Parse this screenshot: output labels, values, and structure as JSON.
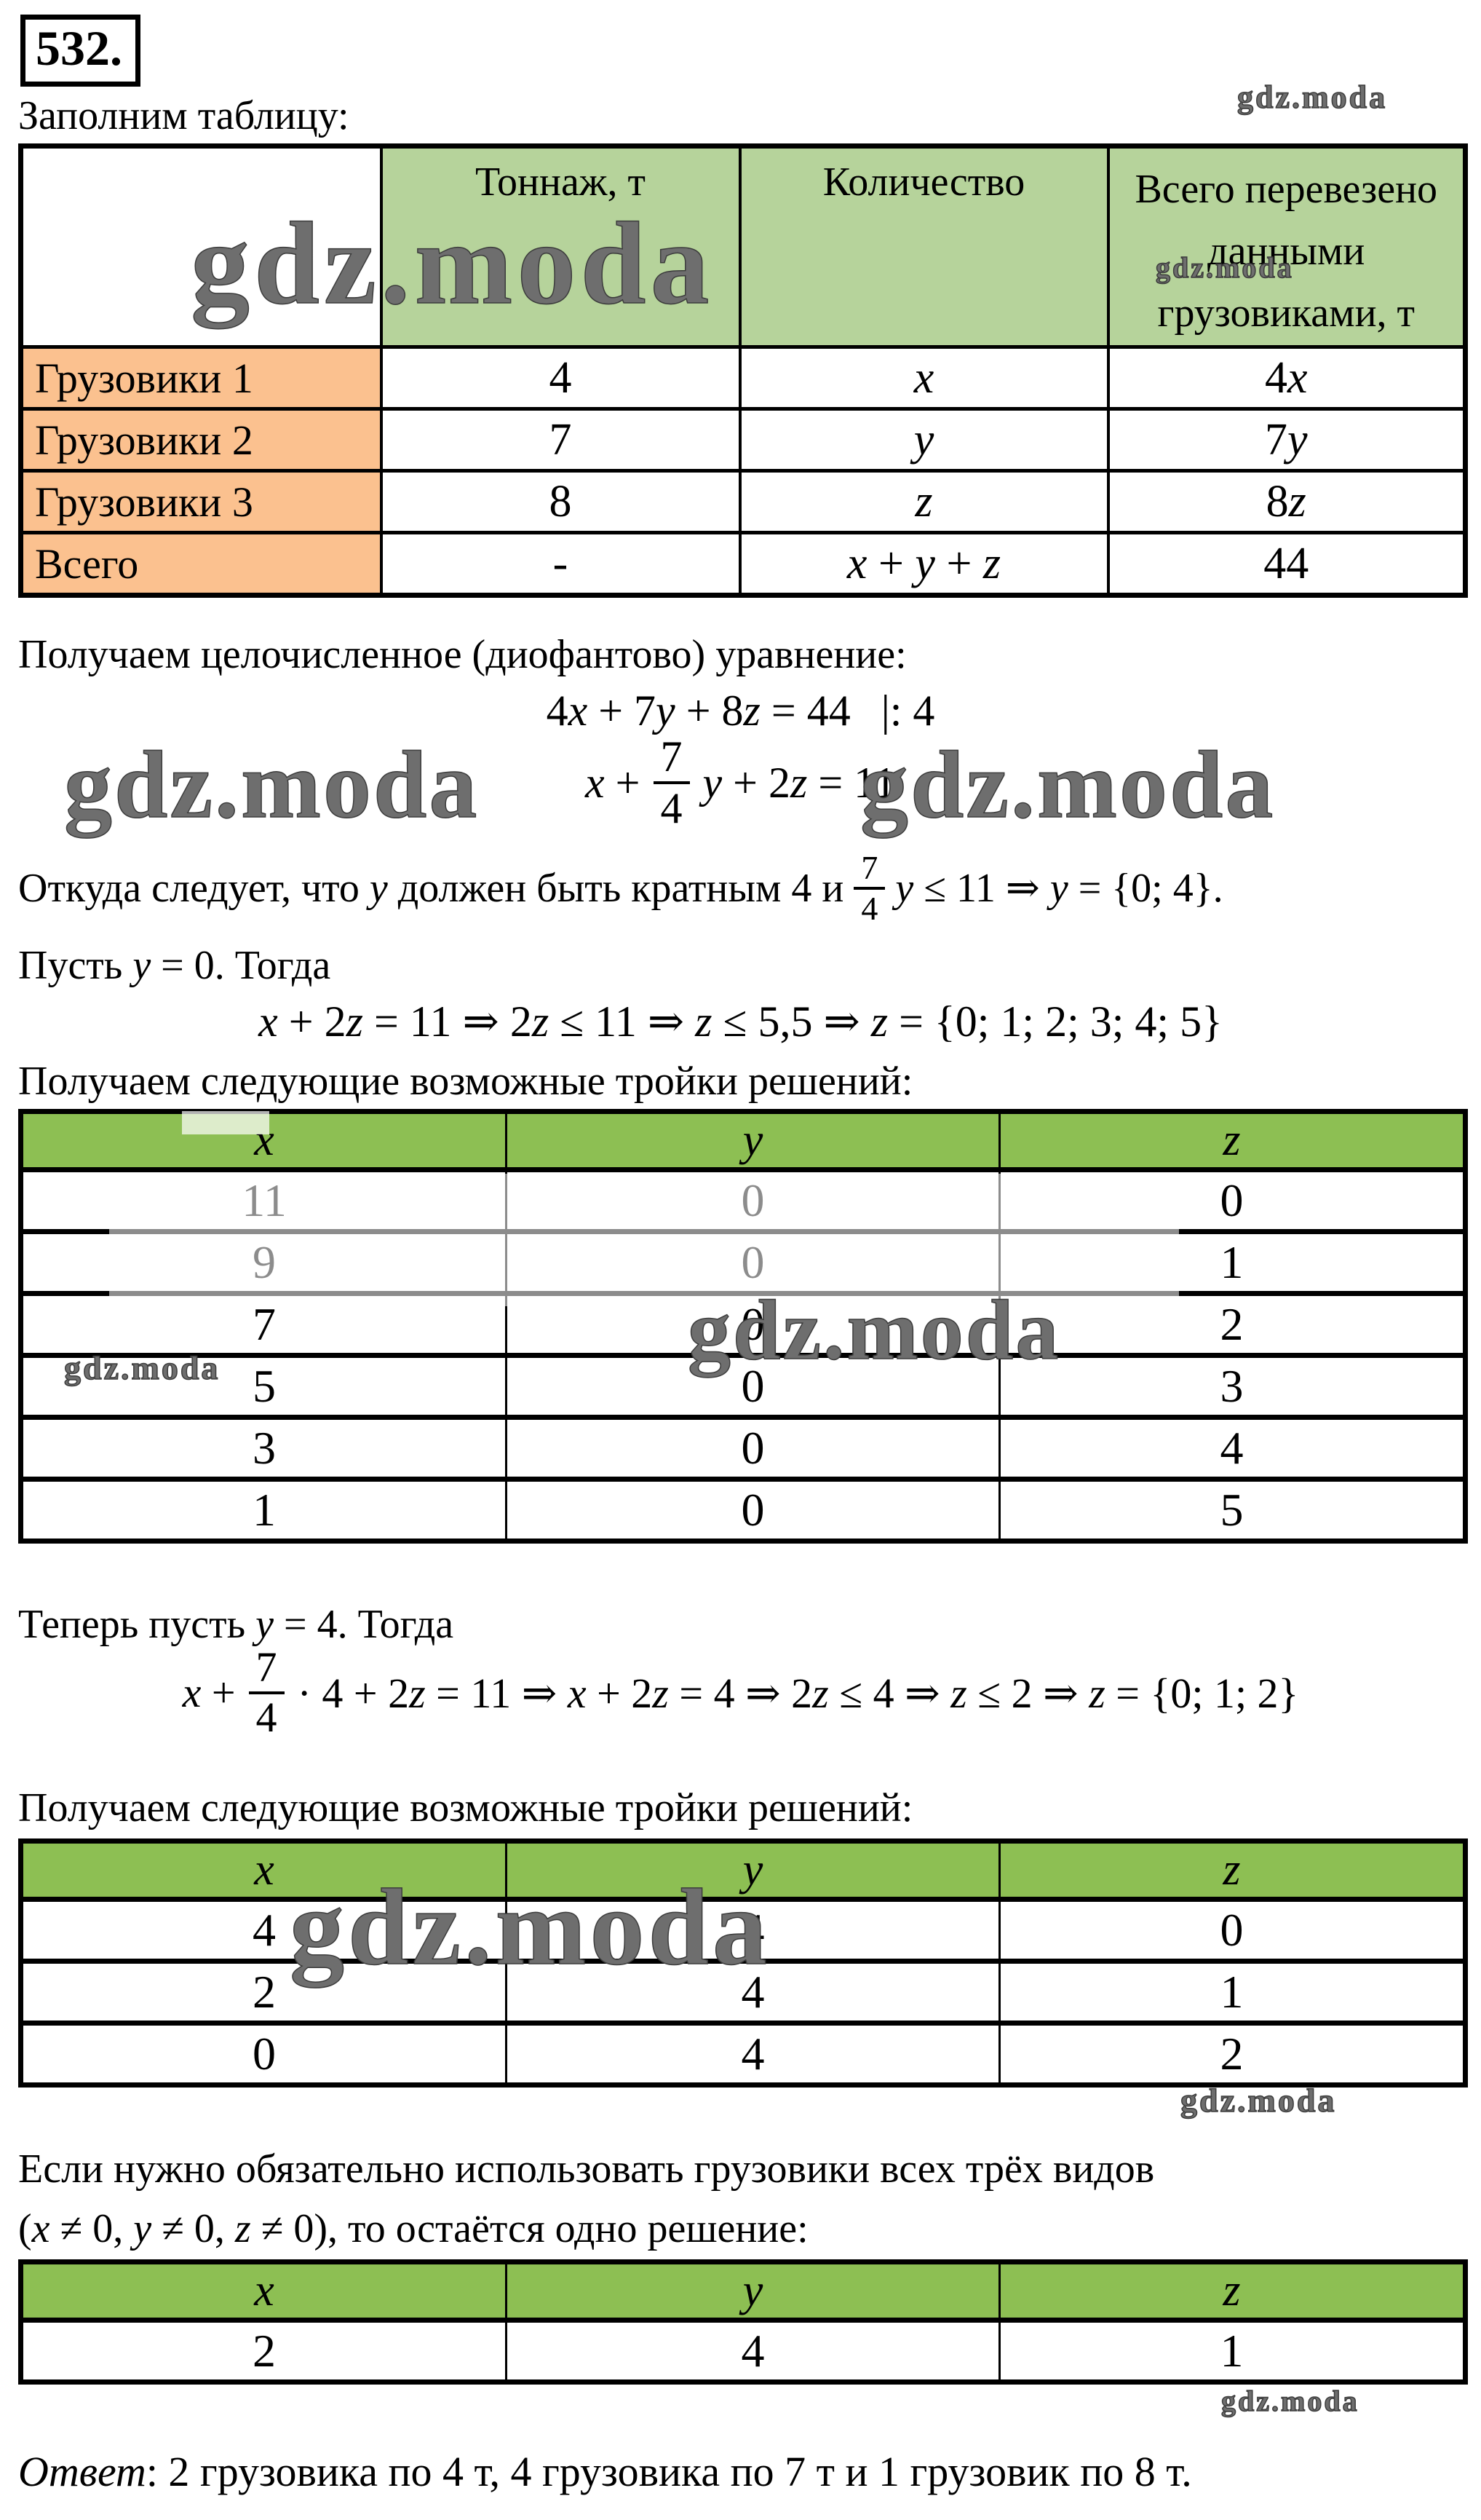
{
  "watermark_text": "gdz.moda",
  "colors": {
    "table1_header_green": "#b6d39b",
    "xyz_header_green": "#8dbf53",
    "label_orange": "#fbc18f",
    "text_black": "#000000"
  },
  "header": {
    "problem_number": "532.",
    "intro": "Заполним таблицу:"
  },
  "table1": {
    "col2": "Тоннаж, т",
    "col3": "Количество",
    "col4_l1": "Всего перевезено",
    "col4_l2": "данными",
    "col4_l3": "грузовиками, т",
    "rows": [
      {
        "label": "Грузовики 1",
        "tonnage": "4",
        "count": "x",
        "total": "4x"
      },
      {
        "label": "Грузовики 2",
        "tonnage": "7",
        "count": "y",
        "total": "7y"
      },
      {
        "label": "Грузовики 3",
        "tonnage": "8",
        "count": "z",
        "total": "8z"
      },
      {
        "label": "Всего",
        "tonnage": "-",
        "count": "x + y + z",
        "total": "44"
      }
    ]
  },
  "solution": {
    "p_equation": "Получаем целочисленное (диофантово) уравнение:",
    "eq1_body": "4x + 7y + 8z = 44",
    "eq1_divide": "|: 4",
    "eq2_pre": "x +",
    "frac_num": "7",
    "frac_den": "4",
    "eq2_post": "y + 2z = 11",
    "conclusion_pre": "Откуда следует, что y должен быть кратным 4 и",
    "conclusion_post": "y ≤ 11 ⇒ y = {0; 4}.",
    "case1": "Пусть y = 0. Тогда",
    "eq3": "x + 2z = 11 ⇒ 2z ≤ 11 ⇒ z ≤ 5,5 ⇒ z = {0; 1; 2; 3; 4; 5}",
    "p_triples": "Получаем следующие возможные тройки решений:",
    "case2": "Теперь пусть y = 4. Тогда",
    "eq4_pre": "x +",
    "eq4_post": "· 4 + 2z = 11 ⇒ x + 2z = 4 ⇒ 2z ≤ 4 ⇒ z ≤ 2 ⇒ z = {0; 1; 2}",
    "condition1": "Если нужно обязательно использовать грузовики всех трёх видов",
    "condition2": "(x ≠ 0, y ≠ 0, z ≠ 0), то остаётся одно решение:",
    "answer_label": "Ответ",
    "answer_text": ": 2 грузовика по 4 т, 4 грузовика по 7 т и 1 грузовик по 8 т."
  },
  "xyz": {
    "x": "x",
    "y": "y",
    "z": "z"
  },
  "table2_rows": [
    [
      "11",
      "0",
      "0"
    ],
    [
      "9",
      "0",
      "1"
    ],
    [
      "7",
      "0",
      "2"
    ],
    [
      "5",
      "0",
      "3"
    ],
    [
      "3",
      "0",
      "4"
    ],
    [
      "1",
      "0",
      "5"
    ]
  ],
  "table3_rows": [
    [
      "4",
      "4",
      "0"
    ],
    [
      "2",
      "4",
      "1"
    ],
    [
      "0",
      "4",
      "2"
    ]
  ],
  "table4_rows": [
    [
      "2",
      "4",
      "1"
    ]
  ]
}
